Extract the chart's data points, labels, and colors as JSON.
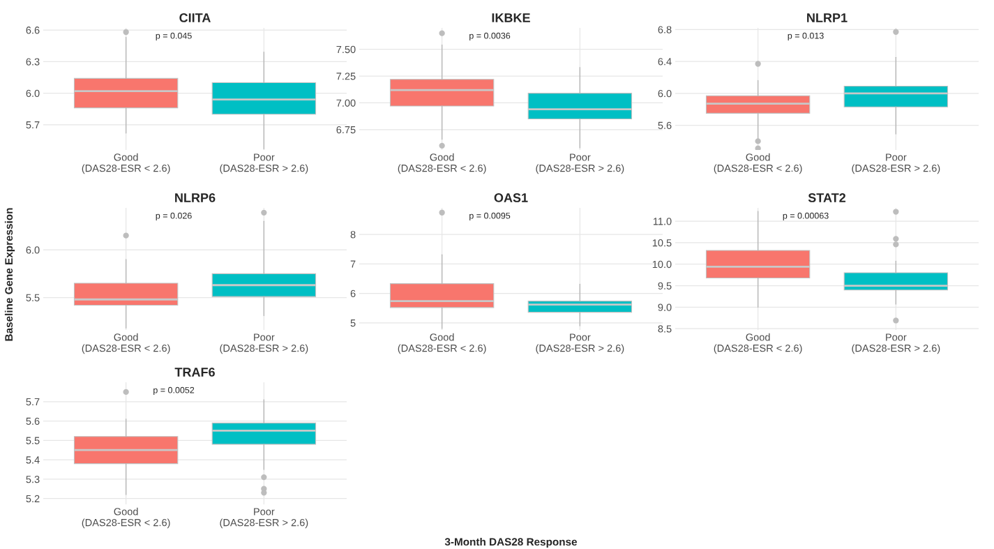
{
  "chart_data": [
    {
      "type": "box",
      "title": "CIITA",
      "categories": [
        "Good\n(DAS28-ESR < 2.6)",
        "Poor\n(DAS28-ESR > 2.6)"
      ],
      "colors": [
        "#f8766d",
        "#00bfc4"
      ],
      "ylim": [
        5.46,
        6.62
      ],
      "yticks": [
        5.7,
        {
          "value": 6.0,
          "label": "6.0"
        },
        6.3,
        6.6
      ],
      "grid": true,
      "annotations": [
        "p = 0.045"
      ],
      "boxes": [
        {
          "low": 5.62,
          "q1": 5.86,
          "median": 6.02,
          "q3": 6.14,
          "high": 6.53,
          "outliers": [
            6.58
          ]
        },
        {
          "low": 5.47,
          "q1": 5.8,
          "median": 5.94,
          "q3": 6.1,
          "high": 6.39
        }
      ]
    },
    {
      "type": "box",
      "title": "IKBKE",
      "categories": [
        "Good\n(DAS28-ESR < 2.6)",
        "Poor\n(DAS28-ESR > 2.6)"
      ],
      "colors": [
        "#f8766d",
        "#00bfc4"
      ],
      "ylim": [
        6.56,
        7.7
      ],
      "yticks": [
        {
          "value": 6.75,
          "label": "6.75"
        },
        {
          "value": 7.0,
          "label": "7.00"
        },
        {
          "value": 7.25,
          "label": "7.25"
        },
        {
          "value": 7.5,
          "label": "7.50"
        }
      ],
      "grid": true,
      "annotations": [
        "p = 0.0036"
      ],
      "boxes": [
        {
          "low": 6.66,
          "q1": 6.97,
          "median": 7.12,
          "q3": 7.22,
          "high": 7.54,
          "outliers": [
            7.65,
            6.6
          ]
        },
        {
          "low": 6.58,
          "q1": 6.85,
          "median": 6.94,
          "q3": 7.09,
          "high": 7.33
        }
      ]
    },
    {
      "type": "box",
      "title": "NLRP1",
      "categories": [
        "Good\n(DAS28-ESR < 2.6)",
        "Poor\n(DAS28-ESR > 2.6)"
      ],
      "colors": [
        "#f8766d",
        "#00bfc4"
      ],
      "ylim": [
        5.29,
        6.82
      ],
      "yticks": [
        5.6,
        {
          "value": 6.0,
          "label": "6.0"
        },
        6.4,
        6.8
      ],
      "grid": true,
      "annotations": [
        "p = 0.013"
      ],
      "boxes": [
        {
          "low": 5.43,
          "q1": 5.75,
          "median": 5.87,
          "q3": 5.97,
          "high": 6.16,
          "outliers": [
            6.37,
            5.4,
            5.31
          ]
        },
        {
          "low": 5.49,
          "q1": 5.83,
          "median": 6.0,
          "q3": 6.09,
          "high": 6.45,
          "outliers": [
            6.77
          ]
        }
      ]
    },
    {
      "type": "box",
      "title": "NLRP6",
      "categories": [
        "Good\n(DAS28-ESR < 2.6)",
        "Poor\n(DAS28-ESR > 2.6)"
      ],
      "colors": [
        "#f8766d",
        "#00bfc4"
      ],
      "ylim": [
        5.16,
        6.44
      ],
      "yticks": [
        5.5,
        {
          "value": 6.0,
          "label": "6.0"
        }
      ],
      "grid": true,
      "annotations": [
        "p = 0.026"
      ],
      "ylabel": "Baseline Gene Expression",
      "boxes": [
        {
          "low": 5.18,
          "q1": 5.42,
          "median": 5.48,
          "q3": 5.65,
          "high": 5.9,
          "outliers": [
            6.15
          ]
        },
        {
          "low": 5.31,
          "q1": 5.51,
          "median": 5.63,
          "q3": 5.75,
          "high": 6.3,
          "outliers": [
            6.39
          ]
        }
      ]
    },
    {
      "type": "box",
      "title": "OAS1",
      "categories": [
        "Good\n(DAS28-ESR < 2.6)",
        "Poor\n(DAS28-ESR > 2.6)"
      ],
      "colors": [
        "#f8766d",
        "#00bfc4"
      ],
      "ylim": [
        4.76,
        8.9
      ],
      "yticks": [
        5,
        6,
        7,
        8
      ],
      "grid": true,
      "annotations": [
        "p = 0.0095"
      ],
      "xlabel": "3-Month DAS28 Response",
      "boxes": [
        {
          "low": 4.81,
          "q1": 5.52,
          "median": 5.74,
          "q3": 6.33,
          "high": 7.31,
          "outliers": [
            8.74
          ]
        },
        {
          "low": 4.9,
          "q1": 5.36,
          "median": 5.62,
          "q3": 5.74,
          "high": 6.31
        }
      ]
    },
    {
      "type": "box",
      "title": "STAT2",
      "categories": [
        "Good\n(DAS28-ESR < 2.6)",
        "Poor\n(DAS28-ESR > 2.6)"
      ],
      "colors": [
        "#f8766d",
        "#00bfc4"
      ],
      "ylim": [
        8.47,
        11.31
      ],
      "yticks": [
        8.5,
        {
          "value": 9.0,
          "label": "9.0"
        },
        9.5,
        {
          "value": 10.0,
          "label": "10.0"
        },
        10.5,
        {
          "value": 11.0,
          "label": "11.0"
        }
      ],
      "grid": true,
      "annotations": [
        "p = 0.00063"
      ],
      "boxes": [
        {
          "low": 9.0,
          "q1": 9.68,
          "median": 9.94,
          "q3": 10.32,
          "high": 11.23
        },
        {
          "low": 9.07,
          "q1": 9.4,
          "median": 9.5,
          "q3": 9.8,
          "high": 10.07,
          "outliers": [
            10.59,
            10.46,
            11.22,
            8.69
          ]
        }
      ]
    },
    {
      "type": "box",
      "title": "TRAF6",
      "categories": [
        "Good\n(DAS28-ESR < 2.6)",
        "Poor\n(DAS28-ESR > 2.6)"
      ],
      "colors": [
        "#f8766d",
        "#00bfc4"
      ],
      "ylim": [
        5.17,
        5.8
      ],
      "yticks": [
        5.2,
        5.3,
        5.4,
        5.5,
        5.6,
        5.7
      ],
      "grid": true,
      "annotations": [
        "p = 0.0052"
      ],
      "boxes": [
        {
          "low": 5.22,
          "q1": 5.38,
          "median": 5.45,
          "q3": 5.52,
          "high": 5.61,
          "outliers": [
            5.75
          ]
        },
        {
          "low": 5.35,
          "q1": 5.48,
          "median": 5.55,
          "q3": 5.59,
          "high": 5.71,
          "outliers": [
            5.31,
            5.25,
            5.23
          ]
        }
      ]
    }
  ]
}
